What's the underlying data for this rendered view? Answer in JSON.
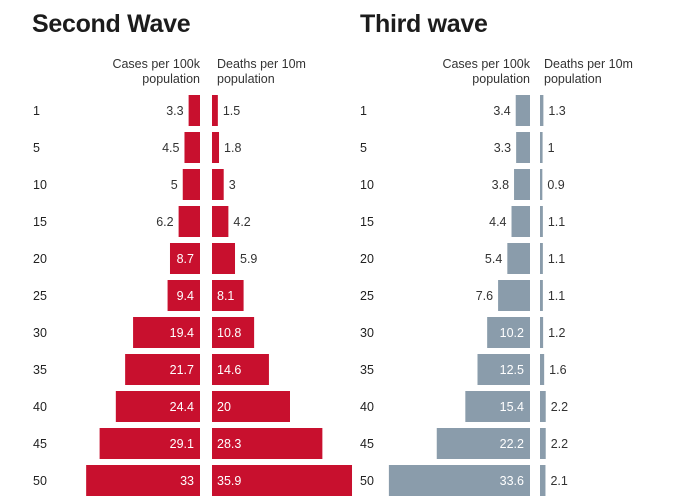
{
  "chart_data": [
    {
      "type": "bar",
      "orientation": "horizontal-butterfly",
      "title": "Second Wave",
      "series_color": "#c8102e",
      "categories": [
        "1",
        "5",
        "10",
        "15",
        "20",
        "25",
        "30",
        "35",
        "40",
        "45",
        "50"
      ],
      "series": [
        {
          "name": "Cases per 100k population",
          "values": [
            3.3,
            4.5,
            5,
            6.2,
            8.7,
            9.4,
            19.4,
            21.7,
            24.4,
            29.1,
            33
          ]
        },
        {
          "name": "Deaths per 10m population",
          "values": [
            1.5,
            1.8,
            3,
            4.2,
            5.9,
            8.1,
            10.8,
            14.6,
            20,
            28.3,
            35.9
          ]
        }
      ]
    },
    {
      "type": "bar",
      "orientation": "horizontal-butterfly",
      "title": "Third wave",
      "series_color": "#8a9cab",
      "categories": [
        "1",
        "5",
        "10",
        "15",
        "20",
        "25",
        "30",
        "35",
        "40",
        "45",
        "50"
      ],
      "series": [
        {
          "name": "Cases per 100k population",
          "values": [
            3.4,
            3.3,
            3.8,
            4.4,
            5.4,
            7.6,
            10.2,
            12.5,
            15.4,
            22.2,
            33.6
          ]
        },
        {
          "name": "Deaths per 10m population",
          "values": [
            1.3,
            1,
            0.9,
            1.1,
            1.1,
            1.1,
            1.2,
            1.6,
            2.2,
            2.2,
            2.1
          ]
        }
      ]
    }
  ]
}
